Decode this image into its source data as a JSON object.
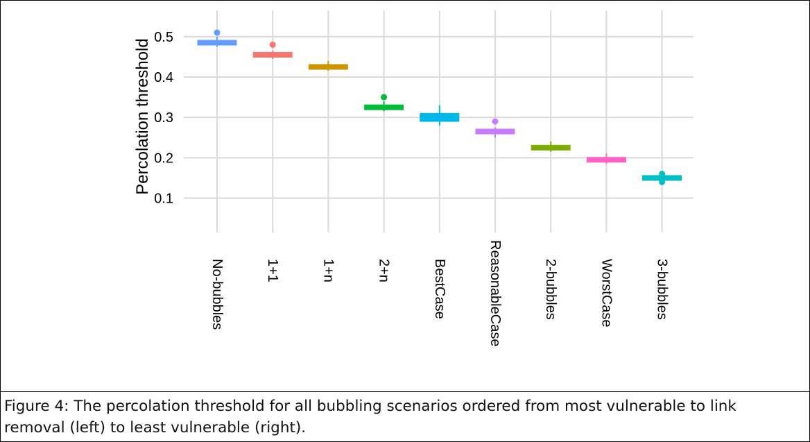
{
  "chart_data": {
    "type": "box",
    "ylabel": "Percolation threshold",
    "xlabel": "",
    "ylim": [
      0.015,
      0.565
    ],
    "yticks": [
      0.1,
      0.2,
      0.3,
      0.4,
      0.5
    ],
    "ytick_labels": [
      "0.1",
      "0.2",
      "0.3",
      "0.4",
      "0.5"
    ],
    "grid": true,
    "categories": [
      "No-bubbles",
      "1+1",
      "1+n",
      "2+n",
      "BestCase",
      "ReasonableCase",
      "2-bubbles",
      "WorstCase",
      "3-bubbles"
    ],
    "boxes": [
      {
        "category": "No-bubbles",
        "q1": 0.48,
        "median": 0.485,
        "q3": 0.49,
        "whisker_low": 0.475,
        "whisker_high": 0.5,
        "outliers": [
          0.51
        ],
        "color": "#619CFF"
      },
      {
        "category": "1+1",
        "q1": 0.45,
        "median": 0.455,
        "q3": 0.46,
        "whisker_low": 0.445,
        "whisker_high": 0.465,
        "outliers": [
          0.48
        ],
        "color": "#F8766D"
      },
      {
        "category": "1+n",
        "q1": 0.42,
        "median": 0.425,
        "q3": 0.43,
        "whisker_low": 0.415,
        "whisker_high": 0.44,
        "outliers": [],
        "color": "#CD9600"
      },
      {
        "category": "2+n",
        "q1": 0.32,
        "median": 0.325,
        "q3": 0.33,
        "whisker_low": 0.315,
        "whisker_high": 0.34,
        "outliers": [
          0.35
        ],
        "color": "#00BA38"
      },
      {
        "category": "BestCase",
        "q1": 0.29,
        "median": 0.3,
        "q3": 0.31,
        "whisker_low": 0.28,
        "whisker_high": 0.33,
        "outliers": [],
        "color": "#00B8E7"
      },
      {
        "category": "ReasonableCase",
        "q1": 0.26,
        "median": 0.265,
        "q3": 0.27,
        "whisker_low": 0.25,
        "whisker_high": 0.275,
        "outliers": [
          0.29
        ],
        "color": "#C77CFF"
      },
      {
        "category": "2-bubbles",
        "q1": 0.22,
        "median": 0.225,
        "q3": 0.23,
        "whisker_low": 0.215,
        "whisker_high": 0.24,
        "outliers": [],
        "color": "#7CAE00"
      },
      {
        "category": "WorstCase",
        "q1": 0.19,
        "median": 0.195,
        "q3": 0.2,
        "whisker_low": 0.185,
        "whisker_high": 0.21,
        "outliers": [],
        "color": "#FF61C3"
      },
      {
        "category": "3-bubbles",
        "q1": 0.148,
        "median": 0.15,
        "q3": 0.152,
        "whisker_low": 0.145,
        "whisker_high": 0.155,
        "outliers": [
          0.14,
          0.16
        ],
        "color": "#00BFC4"
      }
    ]
  },
  "caption": "Figure 4: The percolation threshold for all bubbling scenarios ordered from most vulnerable to link removal (left) to least vulnerable (right)."
}
